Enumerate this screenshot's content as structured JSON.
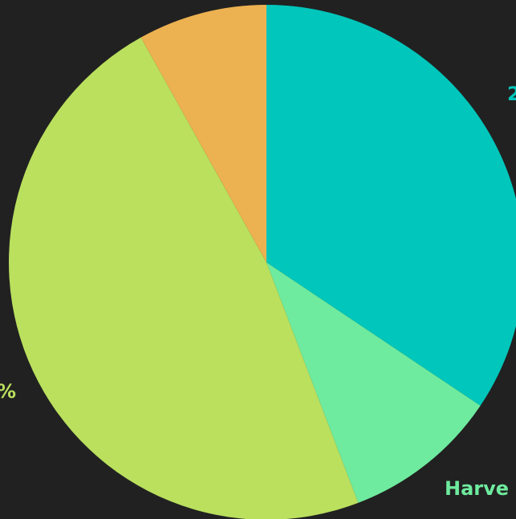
{
  "chart_data": {
    "type": "pie",
    "start_angle_deg": 0,
    "direction": "clockwise",
    "slices": [
      {
        "label": "",
        "percent": 34.4,
        "color": "#00c6bb",
        "visible_label": "2",
        "label_color": "#00c6bb"
      },
      {
        "label": "Harvest",
        "percent": 9.8,
        "color": "#6eeb9e",
        "visible_label": "Harve",
        "label_color": "#6eeb9e"
      },
      {
        "label": "",
        "percent": 47.7,
        "color": "#bae05e",
        "visible_label": "%",
        "label_color": "#bae05e"
      },
      {
        "label": "",
        "percent": 8.1,
        "color": "#ecb151",
        "visible_label": "",
        "label_color": "#ecb151"
      }
    ]
  },
  "colors": {
    "background": "#212121"
  }
}
